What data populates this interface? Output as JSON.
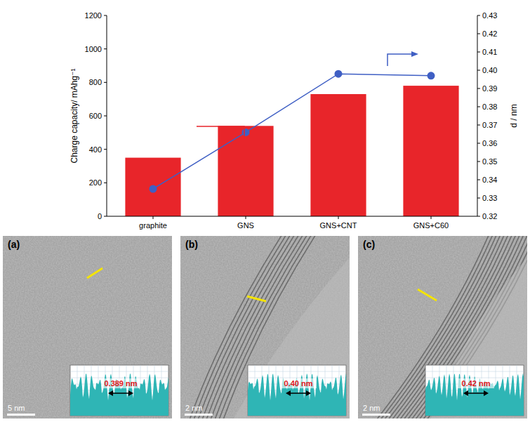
{
  "chart_data": {
    "type": "bar",
    "categories": [
      "graphite",
      "GNS",
      "GNS+CNT",
      "GNS+C60"
    ],
    "y_label": "Charge capacity/ mAhg⁻¹",
    "y2_label": "d / nm",
    "ylim": [
      0,
      1200
    ],
    "yticks": [
      0,
      200,
      400,
      600,
      800,
      1000,
      1200
    ],
    "y2lim": [
      0.32,
      0.43
    ],
    "y2ticks": [
      0.32,
      0.33,
      0.34,
      0.35,
      0.36,
      0.37,
      0.38,
      0.39,
      {
        "value": 0.4,
        "label": "0.40"
      },
      0.41,
      0.42,
      0.43
    ],
    "series": [
      {
        "type": "bar",
        "color": "#e8252a",
        "values": [
          350,
          540,
          730,
          780
        ]
      },
      {
        "type": "line",
        "axis": "y2",
        "color": "#3f5fc4",
        "marker": "circle",
        "line_style": "solid",
        "values": [
          0.335,
          0.366,
          0.398,
          0.397
        ]
      }
    ]
  },
  "panels": [
    {
      "letter": "(a)",
      "scale_bar": "5 nm",
      "spacing": "0.389 nm"
    },
    {
      "letter": "(b)",
      "scale_bar": "2 nm",
      "spacing": "0.40 nm"
    },
    {
      "letter": "(c)",
      "scale_bar": "2 nm",
      "spacing": "0.42 nm"
    }
  ]
}
